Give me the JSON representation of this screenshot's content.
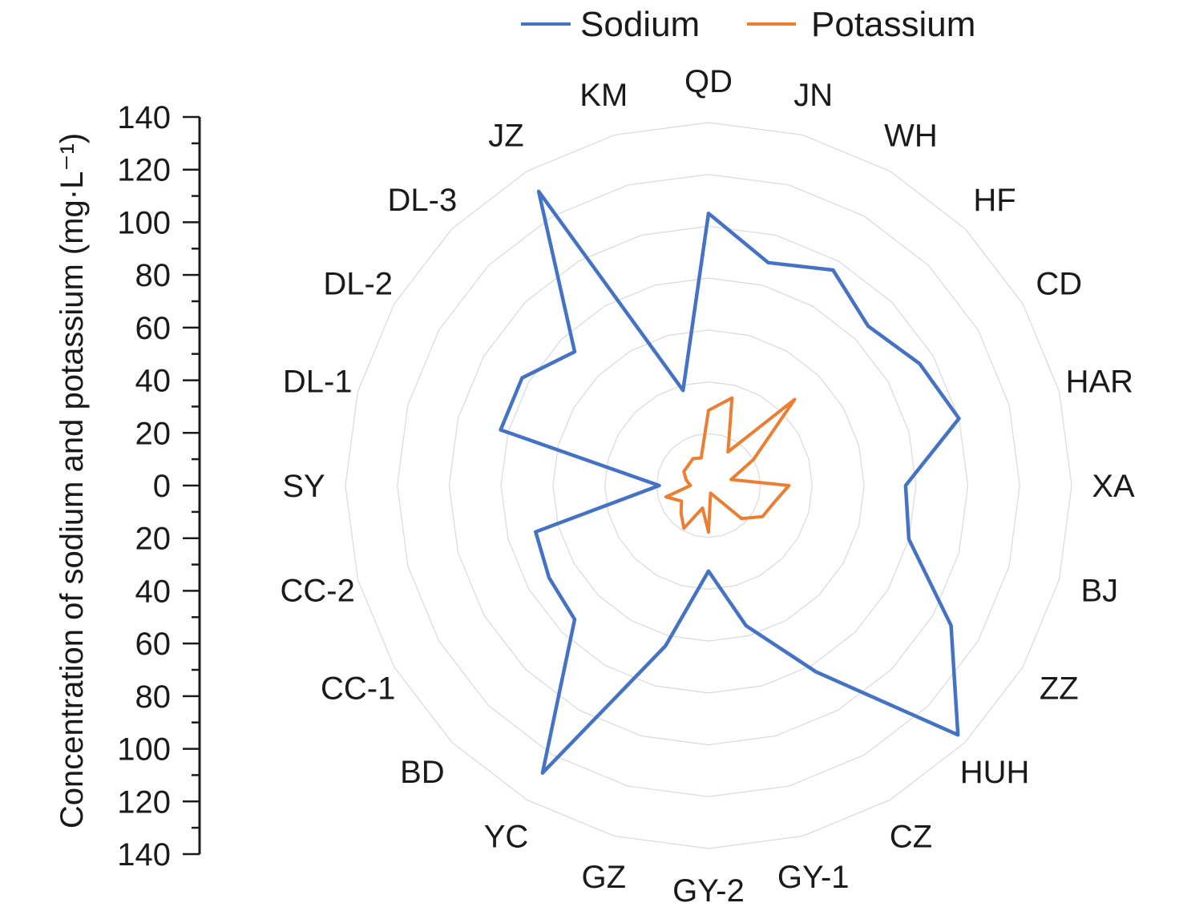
{
  "chart_data": {
    "type": "radar",
    "ylabel": "Concentration of sodium and potassium (mg·L⁻¹)",
    "ylim": [
      0,
      140
    ],
    "ticks_upper": [
      "140",
      "120",
      "100",
      "80",
      "60",
      "40",
      "20",
      "0"
    ],
    "ticks_lower": [
      "20",
      "40",
      "60",
      "80",
      "100",
      "120",
      "140"
    ],
    "categories": [
      "QD",
      "JN",
      "WH",
      "HF",
      "CD",
      "HAR",
      "XA",
      "BJ",
      "ZZ",
      "HUH",
      "CZ",
      "GY-1",
      "GY-2",
      "GZ",
      "YC",
      "BD",
      "CC-1",
      "CC-2",
      "SY",
      "DL-1",
      "DL-2",
      "DL-3",
      "JZ",
      "KM"
    ],
    "series": [
      {
        "name": "Sodium",
        "color": "#4472c4",
        "values": [
          105,
          89,
          96,
          87,
          94,
          100,
          76,
          80,
          108,
          136,
          83,
          56,
          33,
          64,
          128,
          73,
          71,
          69,
          19,
          83,
          83,
          73,
          131,
          38
        ]
      },
      {
        "name": "Potassium",
        "color": "#ed7d31",
        "values": [
          29,
          35,
          15,
          47,
          20,
          9,
          31,
          26,
          24,
          18,
          5,
          3,
          18,
          9,
          19,
          15,
          12,
          17,
          7,
          9,
          11,
          11,
          12,
          11
        ]
      }
    ],
    "legend_position": "top",
    "grid": true
  }
}
